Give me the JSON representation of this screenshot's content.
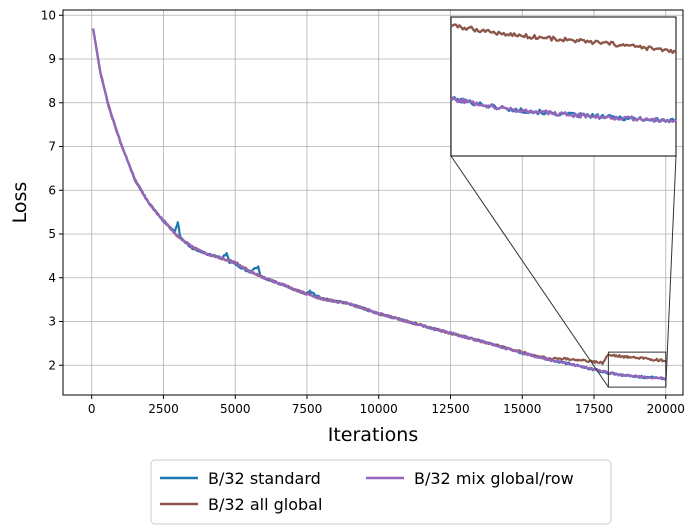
{
  "chart_data": {
    "type": "line",
    "title": "",
    "xlabel": "Iterations",
    "ylabel": "Loss",
    "xlim": [
      -1000,
      20600
    ],
    "ylim": [
      1.32,
      10.12
    ],
    "xticks": [
      0,
      2500,
      5000,
      7500,
      10000,
      12500,
      15000,
      17500,
      20000
    ],
    "xtick_labels": [
      "0",
      "2500",
      "5000",
      "7500",
      "10000",
      "12500",
      "15000",
      "17500",
      "20000"
    ],
    "yticks": [
      2,
      3,
      4,
      5,
      6,
      7,
      8,
      9,
      10
    ],
    "ytick_labels": [
      "2",
      "3",
      "4",
      "5",
      "6",
      "7",
      "8",
      "9",
      "10"
    ],
    "grid": true,
    "legend_position": "bottom-center, below plot, 2 columns",
    "series": [
      {
        "name": "B/32 standard",
        "color": "#1f77b4",
        "x": [
          50,
          300,
          600,
          1000,
          1500,
          2000,
          2500,
          2900,
          3000,
          3100,
          3500,
          4000,
          4500,
          4700,
          4800,
          5000,
          5500,
          5800,
          5900,
          6500,
          7000,
          7500,
          7600,
          8000,
          9000,
          10000,
          11000,
          12000,
          13000,
          14000,
          15000,
          16000,
          17000,
          17500,
          18000,
          18500,
          19000,
          19500,
          20000
        ],
        "y": [
          9.7,
          8.7,
          7.9,
          7.1,
          6.25,
          5.7,
          5.3,
          5.05,
          5.25,
          4.9,
          4.68,
          4.55,
          4.45,
          4.55,
          4.35,
          4.32,
          4.12,
          4.25,
          4.02,
          3.88,
          3.75,
          3.63,
          3.68,
          3.52,
          3.4,
          3.18,
          3.0,
          2.82,
          2.65,
          2.47,
          2.28,
          2.12,
          1.98,
          1.9,
          1.83,
          1.77,
          1.74,
          1.72,
          1.7
        ]
      },
      {
        "name": "B/32 all global",
        "color": "#8c564b",
        "x": [
          50,
          300,
          600,
          1000,
          1500,
          2000,
          2500,
          3000,
          3500,
          4000,
          4500,
          5000,
          5500,
          6000,
          6500,
          7000,
          7500,
          8000,
          9000,
          10000,
          11000,
          12000,
          13000,
          14000,
          15000,
          15500,
          16000,
          16500,
          17000,
          17500,
          17800,
          18000,
          18500,
          19000,
          19500,
          20000
        ],
        "y": [
          9.7,
          8.7,
          7.9,
          7.1,
          6.25,
          5.7,
          5.3,
          4.95,
          4.7,
          4.55,
          4.45,
          4.35,
          4.15,
          4.0,
          3.88,
          3.75,
          3.63,
          3.52,
          3.4,
          3.18,
          3.0,
          2.82,
          2.65,
          2.47,
          2.3,
          2.2,
          2.15,
          2.15,
          2.12,
          2.08,
          2.05,
          2.25,
          2.2,
          2.17,
          2.14,
          2.1
        ]
      },
      {
        "name": "B/32 mix global/row",
        "color": "#9467bd",
        "x": [
          50,
          300,
          600,
          1000,
          1500,
          2000,
          2500,
          3000,
          3500,
          4000,
          4500,
          5000,
          5500,
          6000,
          6500,
          7000,
          7500,
          8000,
          9000,
          10000,
          11000,
          12000,
          13000,
          14000,
          15000,
          16000,
          17000,
          17500,
          18000,
          18500,
          19000,
          19500,
          20000
        ],
        "y": [
          9.7,
          8.7,
          7.9,
          7.1,
          6.25,
          5.7,
          5.3,
          4.95,
          4.7,
          4.55,
          4.45,
          4.35,
          4.15,
          4.0,
          3.88,
          3.75,
          3.63,
          3.52,
          3.4,
          3.18,
          3.0,
          2.82,
          2.65,
          2.47,
          2.28,
          2.12,
          1.98,
          1.9,
          1.83,
          1.77,
          1.74,
          1.72,
          1.7
        ]
      }
    ],
    "inset": {
      "xlim": [
        18000,
        20000
      ],
      "ylim": [
        1.5,
        2.3
      ],
      "connected_to": "zoom rectangle near end of curves"
    }
  }
}
